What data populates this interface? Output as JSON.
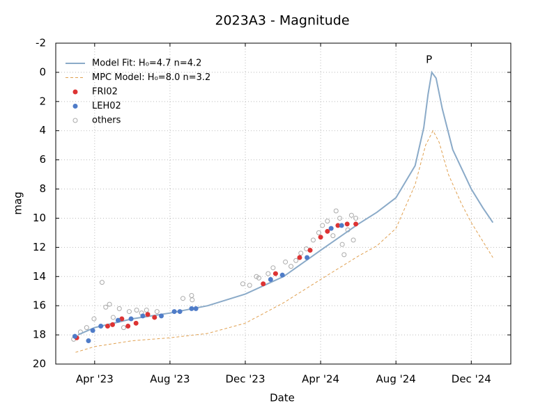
{
  "chart_data": {
    "type": "scatter-line",
    "title": "2023A3 - Magnitude",
    "xlabel": "Date",
    "ylabel": "mag",
    "annotation": "P",
    "xlim": [
      "2023-01-28",
      "2025-02-03"
    ],
    "xticks": [
      {
        "value": "2023-04-01",
        "label": "Apr '23"
      },
      {
        "value": "2023-08-01",
        "label": "Aug '23"
      },
      {
        "value": "2023-12-01",
        "label": "Dec '23"
      },
      {
        "value": "2024-04-01",
        "label": "Apr '24"
      },
      {
        "value": "2024-08-01",
        "label": "Aug '24"
      },
      {
        "value": "2024-12-01",
        "label": "Dec '24"
      }
    ],
    "ylim": [
      20,
      -2
    ],
    "yticks": [
      -2,
      0,
      2,
      4,
      6,
      8,
      10,
      12,
      14,
      16,
      18,
      20
    ],
    "grid": true,
    "legend": "upper left",
    "series": [
      {
        "name": "Model Fit: H₀=4.7 n=4.2",
        "kind": "line",
        "color": "#8aaac8",
        "x": [
          "2023-03-05",
          "2023-04-01",
          "2023-06-01",
          "2023-08-01",
          "2023-10-01",
          "2023-12-01",
          "2024-02-01",
          "2024-04-01",
          "2024-06-01",
          "2024-07-01",
          "2024-08-01",
          "2024-09-01",
          "2024-09-15",
          "2024-09-22",
          "2024-09-28",
          "2024-10-05",
          "2024-10-15",
          "2024-11-01",
          "2024-12-01",
          "2024-12-20",
          "2025-01-05"
        ],
        "values": [
          18.0,
          17.5,
          16.9,
          16.5,
          16.0,
          15.2,
          14.0,
          12.2,
          10.4,
          9.6,
          8.6,
          6.4,
          3.8,
          1.5,
          0.0,
          0.4,
          2.5,
          5.3,
          8.0,
          9.3,
          10.3
        ]
      },
      {
        "name": "MPC Model: H₀=8.0 n=3.2",
        "kind": "dashed",
        "color": "#e0a050",
        "x": [
          "2023-03-01",
          "2023-04-01",
          "2023-06-01",
          "2023-08-01",
          "2023-10-01",
          "2023-12-01",
          "2024-02-01",
          "2024-04-01",
          "2024-06-01",
          "2024-07-01",
          "2024-08-01",
          "2024-09-01",
          "2024-09-18",
          "2024-09-30",
          "2024-10-10",
          "2024-10-25",
          "2024-11-15",
          "2024-12-01",
          "2024-12-20",
          "2025-01-05"
        ],
        "values": [
          19.2,
          18.8,
          18.4,
          18.2,
          17.9,
          17.2,
          15.8,
          14.2,
          12.6,
          11.9,
          10.7,
          7.7,
          5.0,
          4.0,
          4.8,
          7.0,
          9.0,
          10.3,
          11.6,
          12.7
        ]
      },
      {
        "name": "FRI02",
        "kind": "dot",
        "color": "#dd3333",
        "x": [
          "2023-03-03",
          "2023-04-22",
          "2023-04-30",
          "2023-05-15",
          "2023-05-25",
          "2023-06-07",
          "2023-06-26",
          "2023-07-07",
          "2023-12-30",
          "2024-01-19",
          "2024-02-27",
          "2024-03-15",
          "2024-04-01",
          "2024-04-12",
          "2024-04-29",
          "2024-05-14",
          "2024-05-28"
        ],
        "values": [
          18.2,
          17.4,
          17.3,
          16.9,
          17.4,
          17.2,
          16.6,
          16.8,
          14.5,
          13.8,
          12.7,
          12.2,
          11.3,
          10.9,
          10.5,
          10.4,
          10.4
        ]
      },
      {
        "name": "LEH02",
        "kind": "dot",
        "color": "#4f7cc8",
        "x": [
          "2023-02-28",
          "2023-03-22",
          "2023-03-29",
          "2023-04-11",
          "2023-05-09",
          "2023-05-30",
          "2023-06-18",
          "2023-07-18",
          "2023-08-08",
          "2023-08-17",
          "2023-09-05",
          "2023-09-12",
          "2024-01-11",
          "2024-01-30",
          "2024-03-10",
          "2024-04-18",
          "2024-05-05"
        ],
        "values": [
          18.1,
          18.4,
          17.7,
          17.4,
          17.0,
          16.9,
          16.7,
          16.7,
          16.4,
          16.4,
          16.2,
          16.2,
          14.2,
          13.9,
          12.7,
          10.7,
          10.5
        ]
      },
      {
        "name": "others",
        "kind": "ring",
        "color": "#aaaaaa",
        "x": [
          "2023-02-26",
          "2023-03-09",
          "2023-03-19",
          "2023-03-31",
          "2023-04-13",
          "2023-04-19",
          "2023-04-25",
          "2023-05-01",
          "2023-05-11",
          "2023-05-18",
          "2023-05-27",
          "2023-06-08",
          "2023-06-16",
          "2023-06-24",
          "2023-07-11",
          "2023-08-22",
          "2023-09-05",
          "2023-09-06",
          "2023-11-27",
          "2023-12-08",
          "2023-12-19",
          "2023-12-23",
          "2024-01-07",
          "2024-01-15",
          "2024-02-04",
          "2024-02-13",
          "2024-02-21",
          "2024-02-29",
          "2024-03-09",
          "2024-03-20",
          "2024-03-29",
          "2024-04-04",
          "2024-04-12",
          "2024-04-21",
          "2024-04-26",
          "2024-05-02",
          "2024-05-06",
          "2024-05-09",
          "2024-05-15",
          "2024-05-21",
          "2024-05-24",
          "2024-05-28"
        ],
        "values": [
          18.3,
          17.8,
          17.5,
          16.9,
          14.4,
          16.1,
          15.9,
          16.8,
          16.2,
          17.5,
          16.4,
          16.3,
          16.5,
          16.3,
          16.4,
          15.5,
          15.3,
          15.6,
          14.5,
          14.6,
          14.0,
          14.1,
          13.8,
          13.4,
          13.0,
          13.3,
          12.9,
          12.4,
          12.1,
          11.5,
          11.0,
          10.5,
          10.2,
          11.2,
          9.5,
          10.0,
          11.8,
          12.5,
          10.8,
          9.8,
          11.5,
          10.0
        ]
      }
    ]
  }
}
